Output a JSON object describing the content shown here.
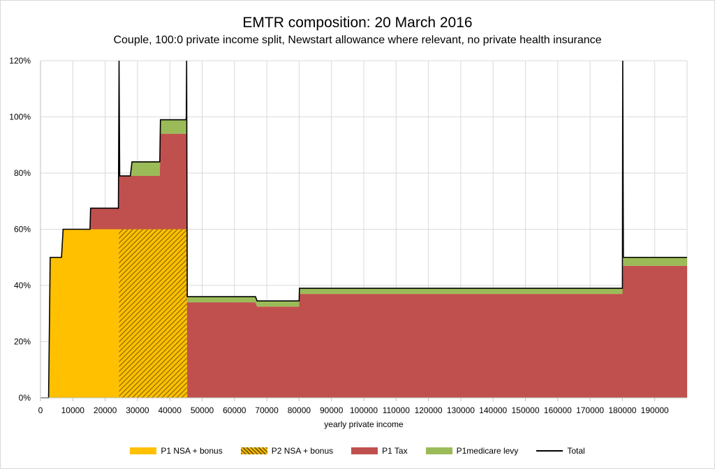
{
  "chart_data": {
    "type": "area",
    "title": "EMTR composition: 20 March 2016",
    "subtitle": "Couple, 100:0 private income split, Newstart allowance where relevant, no private health insurance",
    "xlabel": "yearly private income",
    "ylabel": "",
    "xlim": [
      0,
      200000
    ],
    "ylim": [
      0,
      1.2
    ],
    "x_ticks": [
      "0",
      "10000",
      "20000",
      "30000",
      "40000",
      "50000",
      "60000",
      "70000",
      "80000",
      "90000",
      "100000",
      "110000",
      "120000",
      "130000",
      "140000",
      "150000",
      "160000",
      "170000",
      "180000",
      "190000"
    ],
    "y_ticks": [
      "0%",
      "20%",
      "40%",
      "60%",
      "80%",
      "100%",
      "120%"
    ],
    "grid": true,
    "legend_position": "bottom",
    "stacked": true,
    "series": [
      {
        "name": "P1 NSA + bonus",
        "color": "#FFC000",
        "pattern": "solid",
        "points": [
          [
            0,
            0
          ],
          [
            2500,
            0
          ],
          [
            3000,
            0.5
          ],
          [
            6500,
            0.5
          ],
          [
            7000,
            0.6
          ],
          [
            24200,
            0.6
          ],
          [
            24300,
            0
          ],
          [
            200000,
            0
          ]
        ]
      },
      {
        "name": "P2 NSA + bonus",
        "color": "#BF9000",
        "pattern": "hatch",
        "points": [
          [
            0,
            0
          ],
          [
            24200,
            0
          ],
          [
            24300,
            0.6
          ],
          [
            45200,
            0.6
          ],
          [
            45400,
            0
          ],
          [
            200000,
            0
          ]
        ]
      },
      {
        "name": "P1 Tax",
        "color": "#C0504D",
        "pattern": "solid",
        "points": [
          [
            0,
            0
          ],
          [
            15300,
            0
          ],
          [
            15500,
            0.075
          ],
          [
            24200,
            0.075
          ],
          [
            24300,
            0.19
          ],
          [
            36900,
            0.19
          ],
          [
            37100,
            0.34
          ],
          [
            45200,
            0.34
          ],
          [
            45400,
            0.34
          ],
          [
            66500,
            0.34
          ],
          [
            67000,
            0.325
          ],
          [
            80000,
            0.325
          ],
          [
            80100,
            0.37
          ],
          [
            180000,
            0.37
          ],
          [
            180200,
            0.47
          ],
          [
            200000,
            0.47
          ]
        ]
      },
      {
        "name": "P1medicare levy",
        "color": "#9BBB59",
        "pattern": "solid",
        "points": [
          [
            0,
            0
          ],
          [
            27800,
            0
          ],
          [
            28300,
            0.05
          ],
          [
            36900,
            0.05
          ],
          [
            37100,
            0.05
          ],
          [
            45200,
            0.05
          ],
          [
            45400,
            0.02
          ],
          [
            66500,
            0.02
          ],
          [
            67000,
            0.02
          ],
          [
            80000,
            0.02
          ],
          [
            80100,
            0.02
          ],
          [
            180000,
            0.02
          ],
          [
            180200,
            0.03
          ],
          [
            200000,
            0.03
          ]
        ]
      }
    ],
    "total": {
      "name": "Total",
      "color": "#000000",
      "points": [
        [
          0,
          0
        ],
        [
          2500,
          0
        ],
        [
          3000,
          0.5
        ],
        [
          6500,
          0.5
        ],
        [
          7000,
          0.6
        ],
        [
          15300,
          0.6
        ],
        [
          15500,
          0.675
        ],
        [
          24100,
          0.675
        ],
        [
          24300,
          1.25
        ],
        [
          24500,
          0.79
        ],
        [
          27800,
          0.79
        ],
        [
          28300,
          0.84
        ],
        [
          36900,
          0.84
        ],
        [
          37100,
          0.99
        ],
        [
          45000,
          0.99
        ],
        [
          45100,
          1.0
        ],
        [
          45200,
          1.25
        ],
        [
          45400,
          0.36
        ],
        [
          66500,
          0.36
        ],
        [
          67000,
          0.345
        ],
        [
          80000,
          0.345
        ],
        [
          80100,
          0.39
        ],
        [
          180000,
          0.39
        ],
        [
          180100,
          1.25
        ],
        [
          180300,
          0.5
        ],
        [
          200000,
          0.5
        ]
      ]
    }
  }
}
